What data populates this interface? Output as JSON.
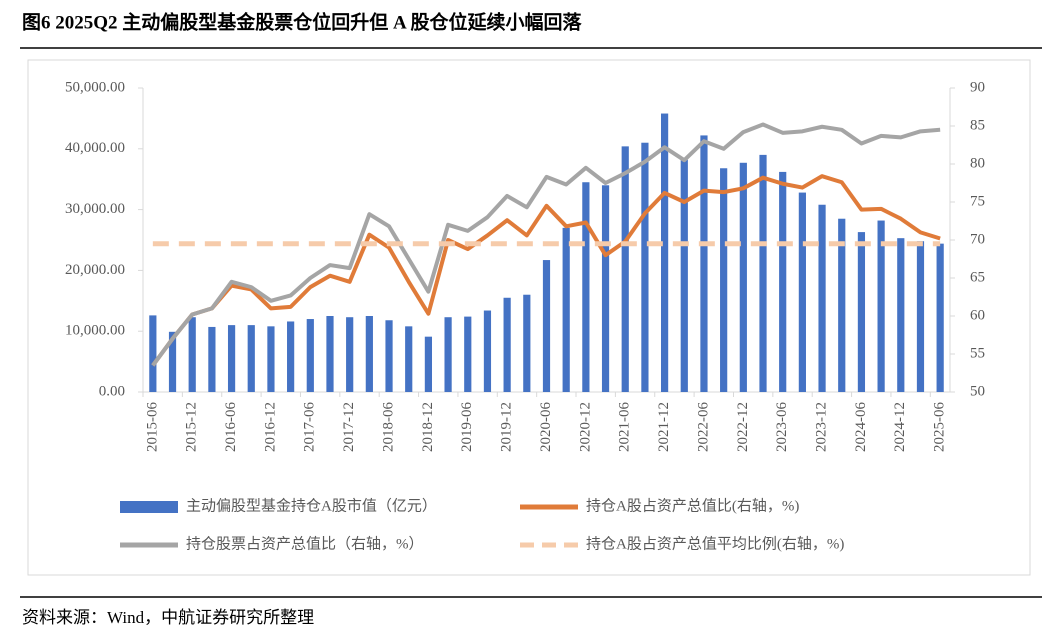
{
  "title": "图6  2025Q2 主动偏股型基金股票仓位回升但 A 股仓位延续小幅回落",
  "source": "资料来源：Wind，中航证券研究所整理",
  "chart_data": {
    "type": "combo",
    "categories": [
      "2015-06",
      null,
      "2015-12",
      null,
      "2016-06",
      null,
      "2016-12",
      null,
      "2017-06",
      null,
      "2017-12",
      null,
      "2018-06",
      null,
      "2018-12",
      null,
      "2019-06",
      null,
      "2019-12",
      null,
      "2020-06",
      null,
      "2020-12",
      null,
      "2021-06",
      null,
      "2021-12",
      null,
      "2022-06",
      null,
      "2022-12",
      null,
      "2023-06",
      null,
      "2023-12",
      null,
      "2024-06",
      null,
      "2024-12",
      null,
      "2025-06"
    ],
    "series": [
      {
        "name": "主动偏股型基金持仓A股市值（亿元）",
        "type": "bar",
        "color": "#4472c4",
        "values": [
          12600,
          9900,
          12300,
          10700,
          11000,
          11000,
          10800,
          11600,
          12000,
          12500,
          12300,
          12500,
          11800,
          10800,
          9100,
          12300,
          12400,
          13400,
          15500,
          16000,
          21700,
          27000,
          34500,
          34000,
          40400,
          41000,
          45800,
          38200,
          42200,
          36800,
          37700,
          39000,
          36200,
          32800,
          30800,
          28500,
          26300,
          28200,
          25300,
          24800,
          24400
        ]
      },
      {
        "name": "持仓A股占资产总值比(右轴，%)",
        "type": "line",
        "axis": "y2",
        "color": "#e07b39",
        "values": [
          53.5,
          57,
          60.2,
          61,
          64,
          63.5,
          61,
          61.2,
          63.8,
          65.3,
          64.5,
          70.7,
          69,
          64.5,
          60.3,
          70,
          68.8,
          70.6,
          72.6,
          70.6,
          74.5,
          71.8,
          72.3,
          68,
          69.8,
          73.5,
          76.2,
          75,
          76.5,
          76.3,
          76.8,
          78.2,
          77.4,
          76.9,
          78.4,
          77.6,
          74,
          74.1,
          72.8,
          71,
          70.2
        ]
      },
      {
        "name": "持仓股票占资产总值比（右轴，%）",
        "type": "line",
        "axis": "y2",
        "color": "#a5a5a5",
        "values": [
          53.5,
          57,
          60.2,
          61,
          64.5,
          63.8,
          62,
          62.7,
          65,
          66.7,
          66.3,
          73.4,
          71.8,
          67.5,
          63.2,
          72,
          71.2,
          73,
          75.8,
          74.3,
          78.3,
          77.3,
          79.5,
          77.5,
          78.8,
          80.3,
          82.2,
          80.5,
          83,
          82,
          84.2,
          85.2,
          84.1,
          84.3,
          84.9,
          84.5,
          82.7,
          83.7,
          83.5,
          84.3,
          84.5
        ]
      },
      {
        "name": "持仓A股占资产总值平均比例(右轴，%)",
        "type": "line",
        "dashed": true,
        "axis": "y2",
        "color": "#f6cbaa",
        "values": [
          69.5,
          69.5,
          69.5,
          69.5,
          69.5,
          69.5,
          69.5,
          69.5,
          69.5,
          69.5,
          69.5,
          69.5,
          69.5,
          69.5,
          69.5,
          69.5,
          69.5,
          69.5,
          69.5,
          69.5,
          69.5,
          69.5,
          69.5,
          69.5,
          69.5,
          69.5,
          69.5,
          69.5,
          69.5,
          69.5,
          69.5,
          69.5,
          69.5,
          69.5,
          69.5,
          69.5,
          69.5,
          69.5,
          69.5,
          69.5,
          69.5
        ]
      }
    ],
    "ylim": [
      0,
      50000
    ],
    "yticks": [
      {
        "value": 0,
        "label": "0.00"
      },
      {
        "value": 10000,
        "label": "10,000.00"
      },
      {
        "value": 20000,
        "label": "20,000.00"
      },
      {
        "value": 30000,
        "label": "30,000.00"
      },
      {
        "value": 40000,
        "label": "40,000.00"
      },
      {
        "value": 50000,
        "label": "50,000.00"
      }
    ],
    "y2lim": [
      50,
      90
    ],
    "y2ticks": [
      50,
      55,
      60,
      65,
      70,
      75,
      80,
      85,
      90
    ],
    "grid": false
  }
}
